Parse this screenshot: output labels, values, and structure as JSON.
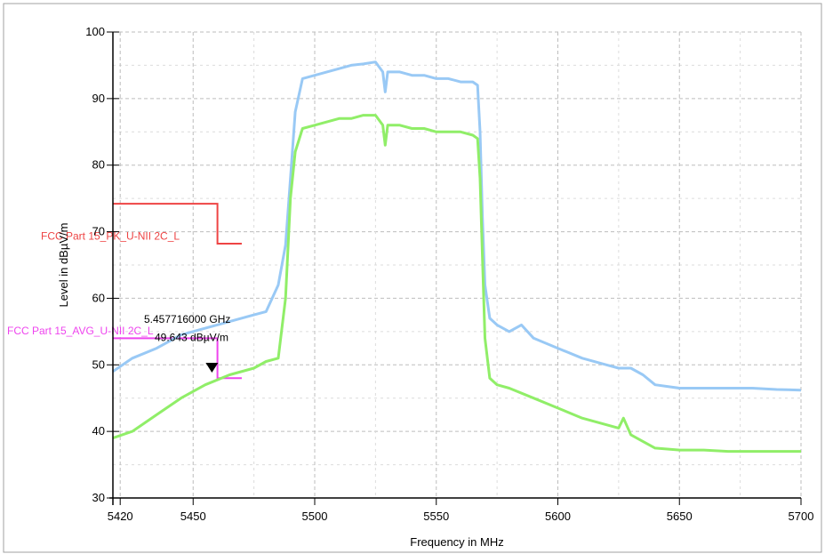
{
  "chart_data": {
    "type": "line",
    "xlabel": "Frequency in MHz",
    "ylabel": "Level in dBµV/m",
    "xlim": [
      5417,
      5700
    ],
    "ylim": [
      30,
      100
    ],
    "x_ticks": [
      5420,
      5450,
      5500,
      5550,
      5600,
      5650,
      5700
    ],
    "y_ticks": [
      30,
      40,
      50,
      60,
      70,
      80,
      90,
      100
    ],
    "grid": true,
    "series": [
      {
        "color": "#99c9f5",
        "x": [
          5417,
          5425,
          5435,
          5445,
          5455,
          5465,
          5475,
          5480,
          5485,
          5488,
          5490,
          5492,
          5495,
          5500,
          5505,
          5510,
          5515,
          5520,
          5525,
          5528,
          5529,
          5530,
          5535,
          5540,
          5545,
          5550,
          5555,
          5560,
          5565,
          5567,
          5568,
          5569,
          5570,
          5572,
          5575,
          5580,
          5585,
          5590,
          5600,
          5610,
          5620,
          5625,
          5630,
          5635,
          5640,
          5650,
          5660,
          5670,
          5680,
          5690,
          5700
        ],
        "y": [
          49,
          51,
          52.5,
          54.5,
          55.5,
          56.5,
          57.5,
          58,
          62,
          68,
          78,
          88,
          93,
          93.5,
          94,
          94.5,
          95,
          95.2,
          95.5,
          94,
          91,
          94,
          94,
          93.5,
          93.5,
          93,
          93,
          92.5,
          92.5,
          92,
          85,
          72,
          62,
          57,
          56,
          55,
          56,
          54,
          52.5,
          51,
          50,
          49.5,
          49.5,
          48.5,
          47,
          46.5,
          46.5,
          46.5,
          46.5,
          46.3,
          46.2
        ]
      },
      {
        "color": "#90ee68",
        "x": [
          5417,
          5425,
          5435,
          5445,
          5455,
          5465,
          5475,
          5480,
          5485,
          5488,
          5490,
          5492,
          5495,
          5500,
          5505,
          5510,
          5515,
          5520,
          5525,
          5528,
          5529,
          5530,
          5535,
          5540,
          5545,
          5550,
          5555,
          5560,
          5565,
          5567,
          5568,
          5569,
          5570,
          5572,
          5575,
          5580,
          5590,
          5600,
          5610,
          5620,
          5625,
          5627,
          5630,
          5635,
          5640,
          5650,
          5660,
          5670,
          5680,
          5690,
          5700
        ],
        "y": [
          39,
          40,
          42.5,
          45,
          47,
          48.5,
          49.5,
          50.5,
          51,
          60,
          75,
          82,
          85.5,
          86,
          86.5,
          87,
          87,
          87.5,
          87.5,
          86,
          83,
          86,
          86,
          85.5,
          85.5,
          85,
          85,
          85,
          84.5,
          84,
          78,
          66,
          54,
          48,
          47,
          46.5,
          45,
          43.5,
          42,
          41,
          40.5,
          42,
          39.5,
          38.5,
          37.5,
          37.2,
          37.2,
          37,
          37,
          37,
          37
        ]
      }
    ],
    "limit_lines": [
      {
        "label": "FCC Part 15_PK_U-NII 2C_L",
        "color": "#ee4444",
        "x": [
          5417,
          5460,
          5460,
          5470
        ],
        "y": [
          74.2,
          74.2,
          68.2,
          68.2
        ]
      },
      {
        "label": "FCC Part 15_AVG_U-NII 2C_L",
        "color": "#ee44ee",
        "x": [
          5417,
          5460,
          5460,
          5470
        ],
        "y": [
          54,
          54,
          48,
          48
        ]
      }
    ],
    "marker": {
      "x": 5457.716,
      "y": 49.643,
      "frequency_text": "5.457716000 GHz",
      "level_text": "49.643 dBµV/m"
    }
  }
}
